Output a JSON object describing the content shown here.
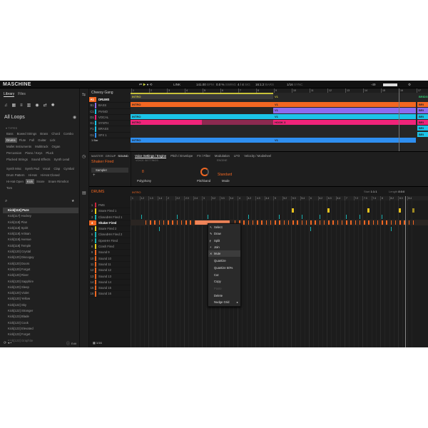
{
  "app": {
    "logo": "MASCHINE"
  },
  "transport": {
    "link": "LINK",
    "tempo": "141.00",
    "tempo_unit": "BPM",
    "swing": "0.0 %",
    "swing_label": "SWING",
    "sig": "4 / 4",
    "sig_label": "SIG",
    "bars": "16:1:2",
    "bars_label": "BARS",
    "grid": "1/16",
    "sync": "SYNC",
    "level": "-49"
  },
  "browser": {
    "tabs": [
      "Library",
      "Files"
    ],
    "title": "All Loops",
    "types_label": "TYPES",
    "types": [
      "Bass",
      "Bowed Strings",
      "Brass",
      "Chord",
      "Combo",
      "Drums",
      "Flute",
      "Full",
      "Guitar",
      "Lick",
      "Mallet Instruments",
      "Multitrack",
      "Organ",
      "Percussion",
      "Piano / Keys",
      "Pluck",
      "Plucked Strings",
      "Sound Effects",
      "Synth Lead",
      "Synth Misc",
      "Synth Pad",
      "Vocal",
      "Clap",
      "Cymbal",
      "Drum Pattern",
      "Hi-Hat",
      "Hi-Hat Closed",
      "Hi-Hat Open",
      "Kick",
      "Snare",
      "Snare Rimshot",
      "Tom"
    ],
    "results": [
      "Kick[113] Pure",
      "Kick[117] Hockey",
      "Kick[118] Plan",
      "Kick[118] Spirit",
      "Kick[119] Artisan",
      "Kick[119] Avenue",
      "Kick[119] Temple",
      "Kick[120] Crystal",
      "Kick[120] Discoguy",
      "Kick[120] Doors",
      "Kick[120] Forgot",
      "Kick[120] River",
      "Kick[120] Sapphire",
      "Kick[120] Sleep",
      "Kick[120] Violet",
      "Kick[120] Yellow",
      "Kick[122] Sky",
      "Kick[122] Stranger",
      "Kick[123] Blade",
      "Kick[123] Cook",
      "Kick[123] Elevated",
      "Kick[123] Forget",
      "Kick[123] Graphite"
    ],
    "edit": "Edit"
  },
  "arranger": {
    "project": "Cheesy Gang",
    "groups": [
      {
        "id": "A1",
        "name": "DRUMS",
        "color": "#f26722"
      },
      {
        "id": "B1",
        "name": "BASS",
        "color": "#8b6cf0"
      },
      {
        "id": "C1",
        "name": "PIANO",
        "color": "#1bc4e8"
      },
      {
        "id": "D1",
        "name": "VOCAL",
        "color": "#f0247a"
      },
      {
        "id": "E1",
        "name": "SYNTH",
        "color": "#1bc4e8"
      },
      {
        "id": "F1",
        "name": "BRASS",
        "color": "#1bc4e8"
      },
      {
        "id": "G1",
        "name": "SFX 1",
        "color": "#2f8ff0"
      }
    ],
    "zoom": "1 Bar",
    "bars": [
      "1",
      "2",
      "3",
      "4",
      "5",
      "6",
      "7",
      "8",
      "9",
      "10",
      "11",
      "12",
      "13",
      "14",
      "15",
      "16",
      "17"
    ],
    "scenes": [
      "INTRO",
      "V1",
      "BRIDGE"
    ],
    "clip_labels": {
      "intro": "INTRO",
      "v1": "V1",
      "hook": "HOOK 3",
      "bridge": "BRI"
    }
  },
  "sound": {
    "levels": [
      "MASTER",
      "GROUP",
      "SOUND"
    ],
    "name": "Shaker Fired",
    "plugin": "Sampler",
    "tabs": [
      "Voice Settings / Engine",
      "Pitch / Envelope",
      "FX / Filter",
      "Modulation",
      "LFO",
      "Velocity / Modwheel"
    ],
    "voice_label": "VOICE SETTINGS",
    "engine_label": "ENGINE",
    "polyphony": "8",
    "polyphony_label": "Polyphony",
    "pitchbend_label": "Pitchband",
    "mode": "Standard",
    "mode_label": "Mode"
  },
  "pattern": {
    "group": "DRUMS",
    "pattern": "INTRO",
    "start_label": "Start",
    "start": "1:1:1",
    "length_label": "Length",
    "length": "8:0:0",
    "grid": "1/16",
    "ruler": [
      "1",
      "1.2",
      "1.3",
      "1.4",
      "2",
      "2.2",
      "2.3",
      "2.4",
      "3",
      "3.2",
      "3.3",
      "3.4",
      "4",
      "4.2",
      "4.3",
      "4.4",
      "5",
      "5.2",
      "5.3",
      "5.4",
      "6",
      "6.2",
      "6.3",
      "6.4",
      "7",
      "7.2",
      "7.3",
      "7.4",
      "8",
      "8.2",
      "8.3",
      "8.4"
    ],
    "sounds": [
      {
        "name": "FMS",
        "color": "#c8263e"
      },
      {
        "name": "Snare Fired 1",
        "color": "#e8d21c"
      },
      {
        "name": "ClosedHH Fired 1",
        "color": "#1bb3b3"
      },
      {
        "name": "Shaker Fired",
        "color": "#f26722"
      },
      {
        "name": "Snare Fired 2",
        "color": "#e8d21c"
      },
      {
        "name": "ClosedHH Fired 2",
        "color": "#1bb3b3"
      },
      {
        "name": "OpenHH Fired",
        "color": "#1bb3b3"
      },
      {
        "name": "Crash Fired",
        "color": "#e8d21c"
      },
      {
        "name": "Sound 9",
        "color": "#f26722"
      },
      {
        "name": "Sound 10",
        "color": "#f26722"
      },
      {
        "name": "Sound 11",
        "color": "#f26722"
      },
      {
        "name": "Sound 12",
        "color": "#f26722"
      },
      {
        "name": "Sound 13",
        "color": "#f26722"
      },
      {
        "name": "Sound 14",
        "color": "#f26722"
      },
      {
        "name": "Sound 15",
        "color": "#f26722"
      },
      {
        "name": "Sound 16",
        "color": "#f26722"
      }
    ]
  },
  "context_menu": [
    {
      "label": "Select",
      "icon": "cursor"
    },
    {
      "label": "Draw",
      "icon": "pencil"
    },
    {
      "label": "Split",
      "icon": "split"
    },
    {
      "label": "Join",
      "icon": "join"
    },
    {
      "label": "Mute",
      "icon": "mute",
      "highlight": true
    },
    {
      "label": "Quantize"
    },
    {
      "label": "Quantize 50%"
    },
    {
      "label": "Cut"
    },
    {
      "label": "Copy"
    },
    {
      "label": "Paste",
      "disabled": true
    },
    {
      "label": "Delete"
    },
    {
      "label": "Nudge Grid",
      "submenu": true
    }
  ],
  "colors": {
    "accent": "#f26722",
    "scene": "#c8c23a",
    "cyan": "#1bc4e8",
    "pink": "#f0247a",
    "purple": "#8b6cf0",
    "blue": "#2f8ff0",
    "yellow": "#e8c21c"
  }
}
